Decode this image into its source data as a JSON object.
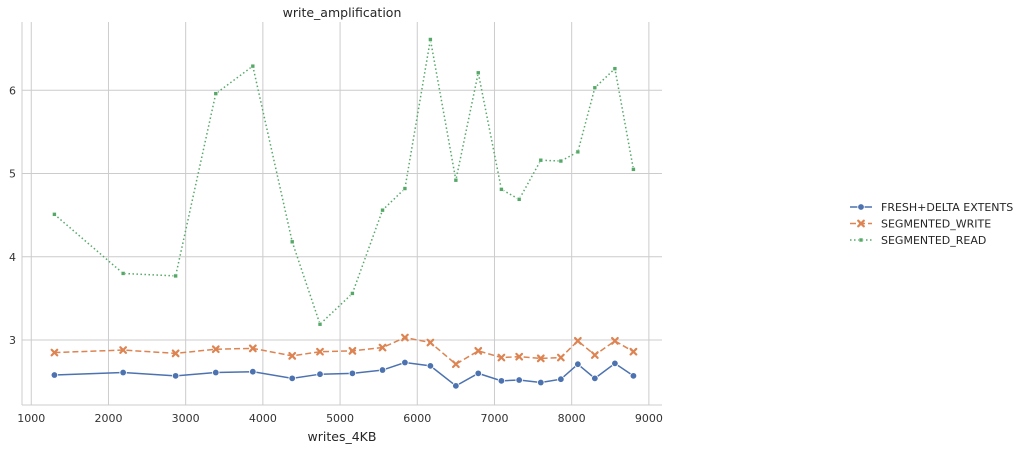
{
  "chart_data": {
    "type": "line",
    "title": "write_amplification",
    "xlabel": "writes_4KB",
    "ylabel": "",
    "xlim": [
      880,
      9170
    ],
    "ylim": [
      2.22,
      6.82
    ],
    "xticks": [
      1000,
      2000,
      3000,
      4000,
      5000,
      6000,
      7000,
      8000,
      9000
    ],
    "yticks": [
      3,
      4,
      5,
      6
    ],
    "grid": true,
    "legend_position": "right",
    "series": [
      {
        "name": "FRESH+DELTA EXTENTS",
        "color": "#4c72b0",
        "marker": "circle",
        "dash": "solid",
        "x": [
          1300,
          2190,
          2870,
          3390,
          3870,
          4380,
          4740,
          5160,
          5550,
          5840,
          6170,
          6500,
          6790,
          7090,
          7320,
          7600,
          7860,
          8080,
          8300,
          8560,
          8800
        ],
        "y": [
          2.58,
          2.61,
          2.57,
          2.61,
          2.62,
          2.54,
          2.59,
          2.6,
          2.64,
          2.73,
          2.69,
          2.45,
          2.6,
          2.51,
          2.52,
          2.49,
          2.53,
          2.71,
          2.54,
          2.72,
          2.57
        ]
      },
      {
        "name": "SEGMENTED_WRITE",
        "color": "#dd8452",
        "marker": "x",
        "dash": "dashed",
        "x": [
          1300,
          2190,
          2870,
          3390,
          3870,
          4380,
          4740,
          5160,
          5550,
          5840,
          6170,
          6500,
          6790,
          7090,
          7320,
          7600,
          7860,
          8080,
          8300,
          8560,
          8800
        ],
        "y": [
          2.85,
          2.88,
          2.84,
          2.89,
          2.9,
          2.81,
          2.86,
          2.87,
          2.91,
          3.03,
          2.97,
          2.71,
          2.87,
          2.79,
          2.8,
          2.78,
          2.79,
          2.99,
          2.82,
          2.99,
          2.86
        ]
      },
      {
        "name": "SEGMENTED_READ",
        "color": "#55a868",
        "marker": "square",
        "dash": "dotted",
        "x": [
          1300,
          2190,
          2870,
          3390,
          3870,
          4380,
          4740,
          5160,
          5550,
          5840,
          6170,
          6500,
          6790,
          7090,
          7320,
          7600,
          7860,
          8080,
          8300,
          8560,
          8800
        ],
        "y": [
          4.51,
          3.8,
          3.77,
          5.96,
          6.29,
          4.18,
          3.19,
          3.56,
          4.56,
          4.82,
          6.61,
          4.92,
          6.21,
          4.81,
          4.69,
          5.16,
          5.15,
          5.26,
          6.03,
          6.26,
          5.05
        ]
      }
    ]
  }
}
